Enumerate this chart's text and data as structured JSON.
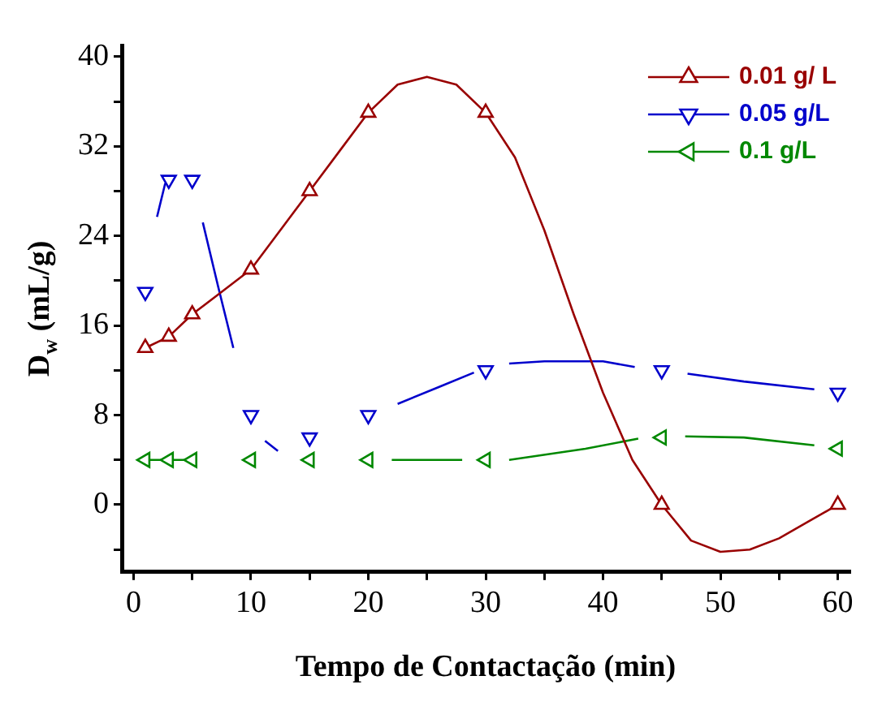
{
  "chart_data": {
    "type": "scatter",
    "xlabel": "Tempo de Contactação (min)",
    "ylabel": "D$_{w}$ (mL/g)",
    "xlim": [
      -1,
      61
    ],
    "ylim": [
      -6,
      41
    ],
    "xticks": [
      0,
      {
        "value": 5,
        "label": null
      },
      10,
      {
        "value": 15,
        "label": null
      },
      20,
      {
        "value": 25,
        "label": null
      },
      30,
      {
        "value": 35,
        "label": null
      },
      40,
      {
        "value": 45,
        "label": null
      },
      50,
      {
        "value": 55,
        "label": null
      },
      60
    ],
    "yticks": [
      {
        "value": -4,
        "label": null
      },
      0,
      {
        "value": 4,
        "label": null
      },
      8,
      {
        "value": 12,
        "label": null
      },
      16,
      {
        "value": 20,
        "label": null
      },
      24,
      {
        "value": 28,
        "label": null
      },
      32,
      {
        "value": 36,
        "label": null
      },
      40
    ],
    "grid": false,
    "legend": "top right",
    "marker": "triangle",
    "series": [
      {
        "name": "0.01 g/ L",
        "color": "#990000",
        "x": [
          1,
          3,
          5,
          10,
          15,
          20,
          30,
          45,
          60
        ],
        "values": [
          14,
          15,
          17,
          21,
          28,
          35,
          35,
          0,
          0
        ]
      },
      {
        "name": "0.05 g/L",
        "color": "#0000cc",
        "x": [
          1,
          3,
          5,
          10,
          15,
          20,
          30,
          45,
          60
        ],
        "values": [
          19,
          29,
          29,
          8,
          6,
          8,
          12,
          12,
          10
        ]
      },
      {
        "name": "0.1 g/L",
        "color": "#008800",
        "x": [
          1,
          3,
          5,
          10,
          15,
          20,
          30,
          45,
          60
        ],
        "values": [
          4,
          4,
          4,
          4,
          4,
          4,
          4,
          6,
          5
        ]
      },
      {
        "type": "line",
        "marker": "none",
        "color": "#990000",
        "x": [
          1,
          3,
          5,
          7.5,
          10,
          12.5,
          15,
          17.5,
          20,
          22.5,
          25,
          27.5,
          30,
          32.5,
          35,
          37.5,
          40,
          42.5,
          45,
          47.5,
          50,
          52.5,
          55,
          57.5,
          60
        ],
        "values": [
          14,
          15,
          17,
          19,
          21,
          24.5,
          28,
          31.5,
          35,
          37.5,
          38.2,
          37.5,
          35,
          31,
          24.5,
          17,
          10,
          4,
          0,
          -3.2,
          -4.2,
          -4,
          -3,
          -1.5,
          0
        ]
      },
      {
        "type": "line",
        "marker": "none",
        "color": "#0000cc",
        "x": [
          2,
          2.7,
          4,
          5.9,
          7.2,
          8.5,
          10,
          11.2,
          12.3,
          18,
          22.5,
          26,
          29,
          31,
          32,
          35,
          40,
          42.7,
          45,
          47.2,
          52,
          58
        ],
        "values": [
          25.7,
          28.7,
          null,
          25.2,
          19.5,
          14,
          null,
          5.7,
          4.8,
          null,
          9,
          10.5,
          11.8,
          null,
          12.6,
          12.8,
          12.8,
          12.3,
          null,
          11.7,
          11,
          10.3
        ]
      },
      {
        "type": "line",
        "marker": "none",
        "color": "#008800",
        "x": [
          1,
          3,
          5,
          12,
          22,
          28,
          30,
          32,
          38.5,
          43,
          45,
          47,
          52,
          58
        ],
        "values": [
          4,
          4,
          4,
          null,
          4,
          4,
          null,
          4,
          5,
          5.9,
          null,
          6.1,
          6,
          5.3
        ]
      }
    ]
  }
}
